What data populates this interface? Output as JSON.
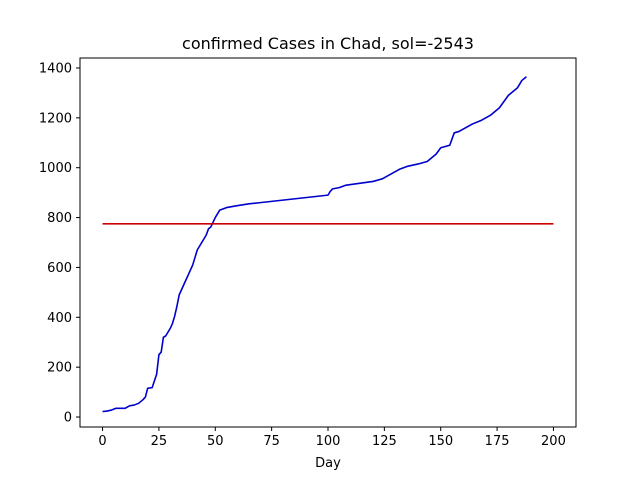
{
  "chart_data": {
    "type": "line",
    "title": "confirmed Cases in Chad, sol=-2543",
    "xlabel": "Day",
    "ylabel": "",
    "xlim": [
      -10,
      210
    ],
    "ylim": [
      -40,
      1440
    ],
    "xticks": [
      0,
      25,
      50,
      75,
      100,
      125,
      150,
      175,
      200
    ],
    "yticks": [
      0,
      200,
      400,
      600,
      800,
      1000,
      1200,
      1400
    ],
    "grid": false,
    "series": [
      {
        "color": "#0000cc",
        "x": [
          0,
          2,
          4,
          6,
          8,
          10,
          12,
          14,
          16,
          18,
          19,
          20,
          22,
          24,
          25,
          26,
          27,
          28,
          30,
          31,
          32,
          33,
          34,
          35,
          36,
          38,
          40,
          42,
          44,
          46,
          47,
          48,
          50,
          52,
          55,
          60,
          65,
          70,
          75,
          80,
          85,
          90,
          95,
          100,
          101,
          102,
          105,
          108,
          112,
          116,
          120,
          124,
          126,
          128,
          130,
          132,
          135,
          140,
          144,
          146,
          148,
          150,
          152,
          154,
          156,
          158,
          160,
          164,
          168,
          172,
          176,
          180,
          184,
          186,
          188
        ],
        "y": [
          22,
          24,
          28,
          35,
          35,
          35,
          45,
          48,
          55,
          70,
          80,
          115,
          118,
          172,
          250,
          260,
          320,
          325,
          355,
          375,
          405,
          445,
          490,
          510,
          530,
          570,
          610,
          670,
          700,
          730,
          755,
          762,
          800,
          830,
          840,
          848,
          855,
          860,
          865,
          870,
          875,
          880,
          885,
          890,
          905,
          915,
          920,
          930,
          935,
          940,
          945,
          955,
          965,
          975,
          985,
          995,
          1005,
          1015,
          1025,
          1040,
          1055,
          1080,
          1085,
          1090,
          1140,
          1145,
          1155,
          1175,
          1190,
          1210,
          1240,
          1290,
          1320,
          1350,
          1365
        ]
      },
      {
        "color": "#cc0000",
        "x": [
          0,
          200
        ],
        "y": [
          775,
          775
        ]
      }
    ]
  }
}
